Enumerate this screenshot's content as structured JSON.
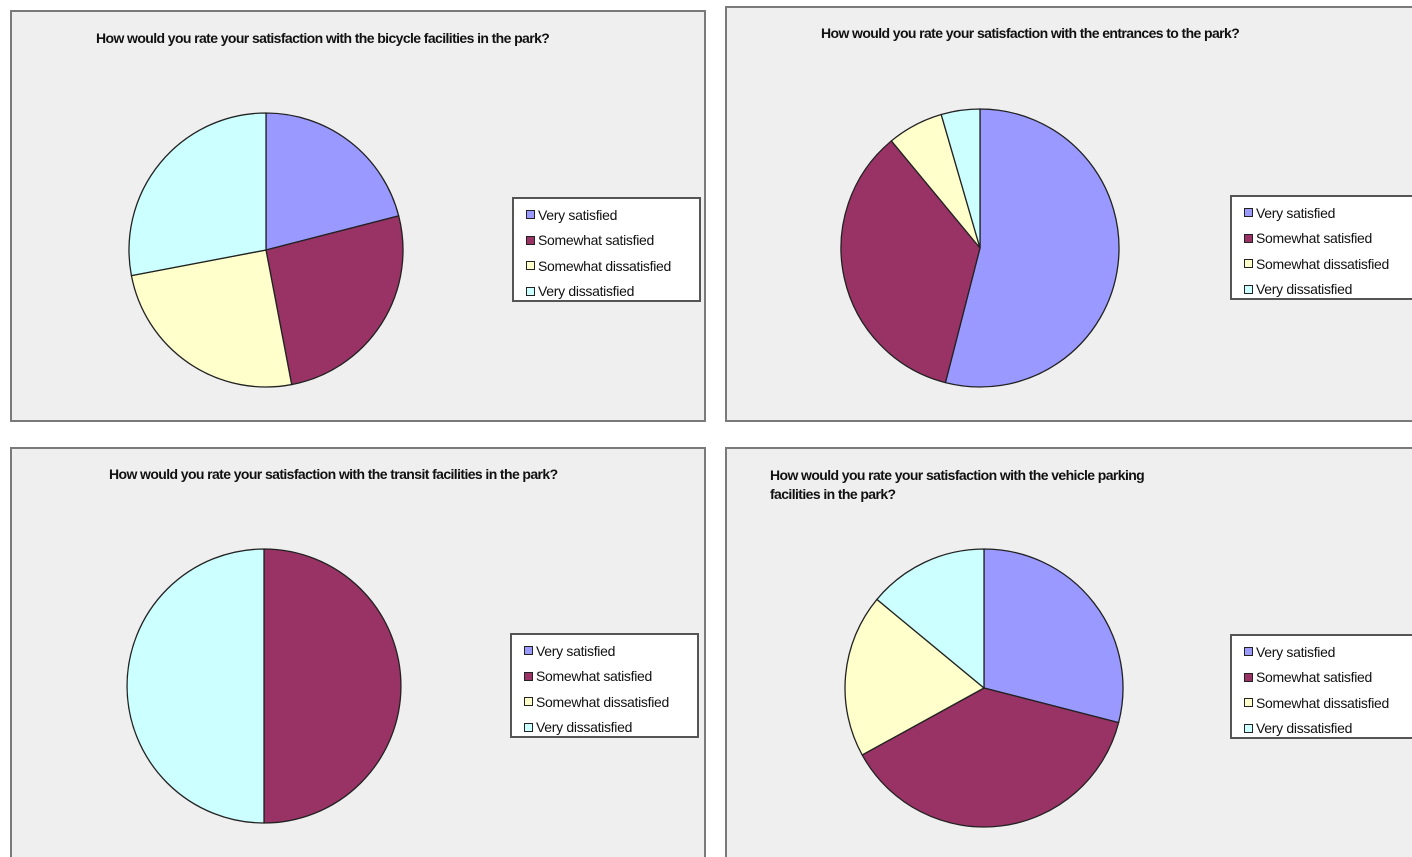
{
  "legend_labels": [
    "Very satisfied",
    "Somewhat satisfied",
    "Somewhat dissatisfied",
    "Very dissatisfied"
  ],
  "colors": [
    "#9999ff",
    "#993366",
    "#ffffcc",
    "#ccffff"
  ],
  "chart_data": [
    {
      "type": "pie",
      "title": "How would you rate your satisfaction with the bicycle facilities in the park?",
      "categories": [
        "Very satisfied",
        "Somewhat satisfied",
        "Somewhat dissatisfied",
        "Very dissatisfied"
      ],
      "values": [
        21,
        26,
        25,
        28
      ],
      "legend": "right"
    },
    {
      "type": "pie",
      "title": "How would you rate your satisfaction with the entrances to the park?",
      "categories": [
        "Very satisfied",
        "Somewhat satisfied",
        "Somewhat dissatisfied",
        "Very dissatisfied"
      ],
      "values": [
        54,
        35,
        6.5,
        4.5
      ],
      "legend": "right"
    },
    {
      "type": "pie",
      "title": "How would you rate your satisfaction with the transit facilities in the park?",
      "categories": [
        "Very satisfied",
        "Somewhat satisfied",
        "Somewhat dissatisfied",
        "Very dissatisfied"
      ],
      "values": [
        0,
        50,
        0,
        50
      ],
      "legend": "right"
    },
    {
      "type": "pie",
      "title": "How would you rate your satisfaction with the vehicle parking\n facilities in the park?",
      "categories": [
        "Very satisfied",
        "Somewhat satisfied",
        "Somewhat dissatisfied",
        "Very dissatisfied"
      ],
      "values": [
        29,
        38,
        19,
        14
      ],
      "legend": "right"
    }
  ]
}
